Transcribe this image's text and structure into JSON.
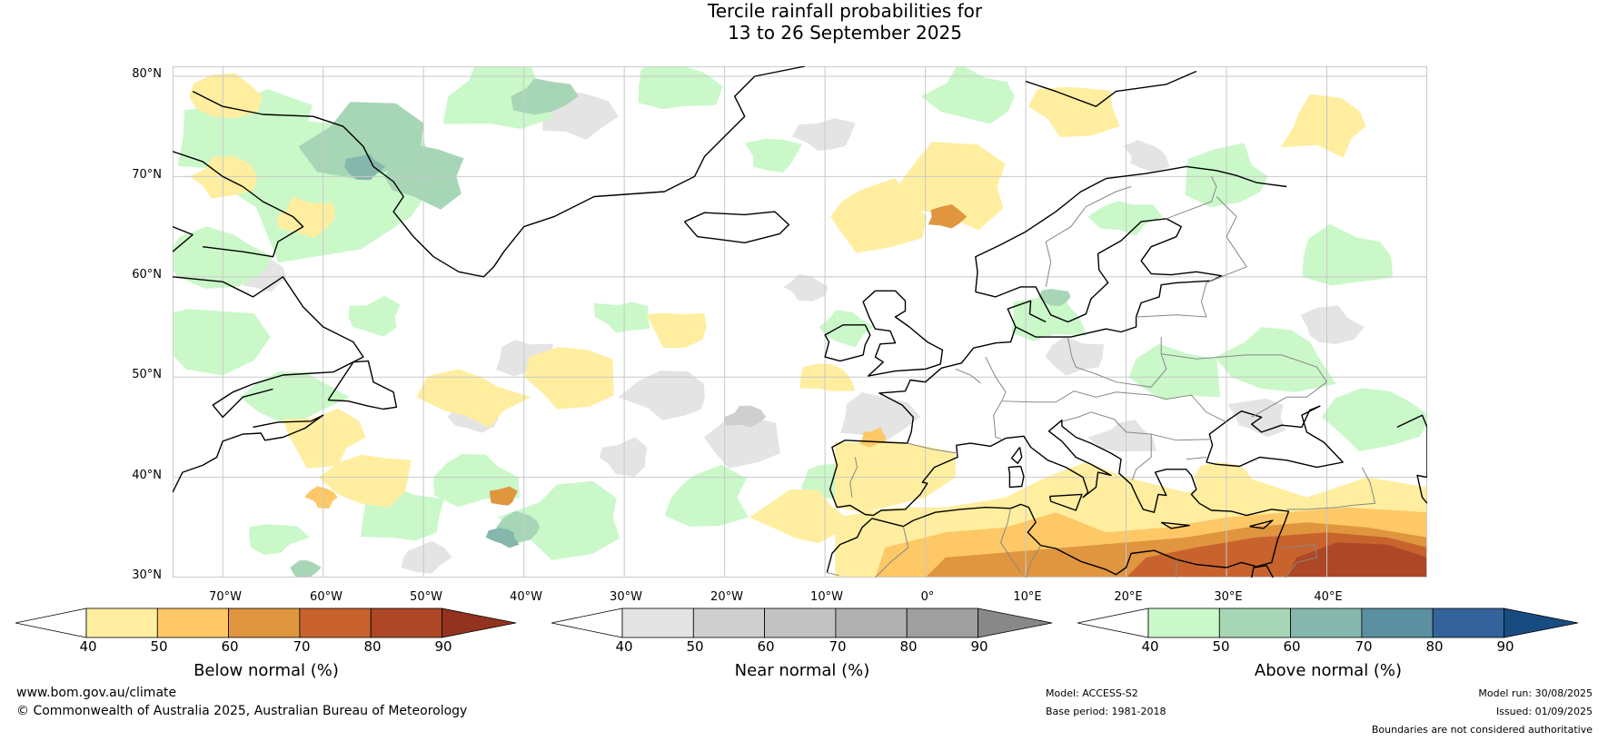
{
  "title": {
    "line1": "Tercile rainfall probabilities for",
    "line2": "13 to 26 September 2025"
  },
  "map": {
    "lat_labels": [
      "80°N",
      "70°N",
      "60°N",
      "50°N",
      "40°N",
      "30°N"
    ],
    "lon_labels": [
      "70°W",
      "60°W",
      "50°W",
      "40°W",
      "30°W",
      "20°W",
      "10°W",
      "0°",
      "10°E",
      "20°E",
      "30°E",
      "40°E"
    ],
    "colors": {
      "below": [
        "#ffeea0",
        "#fdc865",
        "#e0953f",
        "#c8632d",
        "#ae4726",
        "#943220"
      ],
      "near": [
        "#e4e4e4",
        "#cfcfcf",
        "#c2c2c2",
        "#b1b1b1",
        "#9f9f9f",
        "#888888"
      ],
      "above": [
        "#caf8c9",
        "#a6d6b6",
        "#86b7ac",
        "#5a90a0",
        "#33639a",
        "#184b80"
      ],
      "coast": "#000000",
      "border": "#888888",
      "grid": "#c8c8c8"
    }
  },
  "colorbars": [
    {
      "label": "Below normal (%)",
      "ticks": [
        "40",
        "50",
        "60",
        "70",
        "80",
        "90"
      ]
    },
    {
      "label": "Near normal (%)",
      "ticks": [
        "40",
        "50",
        "60",
        "70",
        "80",
        "90"
      ]
    },
    {
      "label": "Above normal (%)",
      "ticks": [
        "40",
        "50",
        "60",
        "70",
        "80",
        "90"
      ]
    }
  ],
  "footer": {
    "website": "www.bom.gov.au/climate",
    "copyright": "© Commonwealth of Australia 2025, Australian Bureau of Meteorology",
    "model": "Model: ACCESS-S2",
    "base_period": "Base period: 1981-2018",
    "model_run": "Model run: 30/08/2025",
    "issued": "Issued: 01/09/2025",
    "disclaimer": "Boundaries are not considered authoritative"
  }
}
